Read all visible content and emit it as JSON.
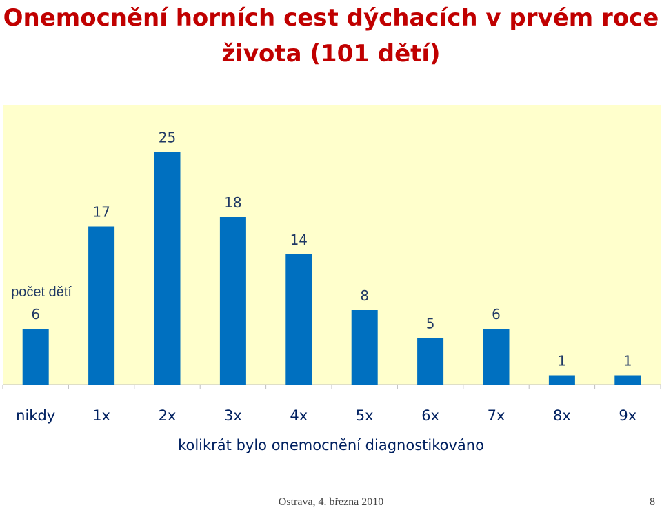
{
  "title": "Onemocnění horních cest dýchacích v prvém roce života (101 dětí)",
  "footer": {
    "text": "Ostrava, 4. března 2010",
    "page": "8"
  },
  "colors": {
    "title": "#c00000",
    "bar": "#0070c0",
    "plot_background": "#ffffcc",
    "axis_text": "#002060",
    "label_text": "#1f3864"
  },
  "chart_data": {
    "type": "bar",
    "ylabel": "počet dětí",
    "xlabel": "kolikrát bylo onemocnění diagnostikováno",
    "categories": [
      "nikdy",
      "1x",
      "2x",
      "3x",
      "4x",
      "5x",
      "6x",
      "7x",
      "8x",
      "9x"
    ],
    "values": [
      6,
      17,
      25,
      18,
      14,
      8,
      5,
      6,
      1,
      1
    ],
    "ylim": [
      0,
      28
    ],
    "grid": false,
    "data_labels": true
  }
}
